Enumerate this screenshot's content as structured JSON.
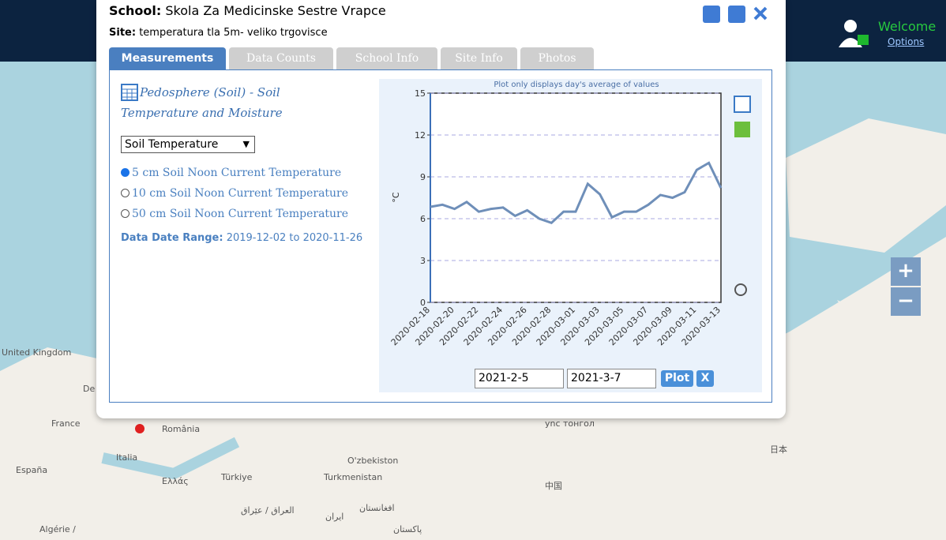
{
  "header": {
    "school_label": "School:",
    "school": "Skola Za Medicinske Sestre Vrapce",
    "site_label": "Site:",
    "site": "temperatura tla 5m- veliko trgovisce"
  },
  "tabs": [
    "Measurements",
    "Data Counts",
    "School Info",
    "Site Info",
    "Photos"
  ],
  "panel": {
    "title": "Pedosphere (Soil) - Soil Temperature and Moisture",
    "select": "Soil Temperature",
    "options": [
      "5 cm Soil Noon Current Temperature",
      "10 cm Soil Noon Current Temperature",
      "50 cm Soil Noon Current Temperature"
    ],
    "date_range_label": "Data Date Range:",
    "date_range": "2019-12-02 to 2020-11-26"
  },
  "chart_data": {
    "type": "line",
    "title": "Plot only displays day's average of values",
    "y_label": "°C",
    "categories": [
      "2020-02-18",
      null,
      "2020-02-20",
      null,
      "2020-02-22",
      null,
      "2020-02-24",
      null,
      "2020-02-26",
      null,
      "2020-02-28",
      null,
      "2020-03-01",
      null,
      "2020-03-03",
      null,
      "2020-03-05",
      null,
      "2020-03-07",
      null,
      "2020-03-09",
      null,
      "2020-03-11",
      null,
      "2020-03-13"
    ],
    "values": [
      6.85,
      7.0,
      6.7,
      7.2,
      6.5,
      6.7,
      6.8,
      6.2,
      6.6,
      6.0,
      5.7,
      6.5,
      6.5,
      8.5,
      7.75,
      6.1,
      6.5,
      6.5,
      7.0,
      7.7,
      7.5,
      7.9,
      9.5,
      10.0,
      8.2
    ],
    "color": "#6f8fb9",
    "ylim": [
      0,
      15
    ],
    "yticks": [
      0,
      3,
      6,
      9,
      12,
      15
    ],
    "grid": true
  },
  "controls": {
    "start": "2021-2-5",
    "end": "2021-3-7",
    "plot": "Plot",
    "clear": "X"
  },
  "nav": {
    "welcome": "Welcome",
    "options": "Options"
  },
  "zoom": {
    "in": "+",
    "out": "−"
  },
  "map": {
    "labels": [
      "United Kingdom",
      "De",
      "France",
      "România",
      "España",
      "Italia",
      "Ελλάς",
      "Türkiye",
      "O'zbekiston",
      "Turkmenistan",
      "中国",
      "日本",
      "العراق / عێراق",
      "ایران",
      "افغانستان",
      "پاکستان",
      "Algérie /",
      "ync тонгол"
    ]
  }
}
